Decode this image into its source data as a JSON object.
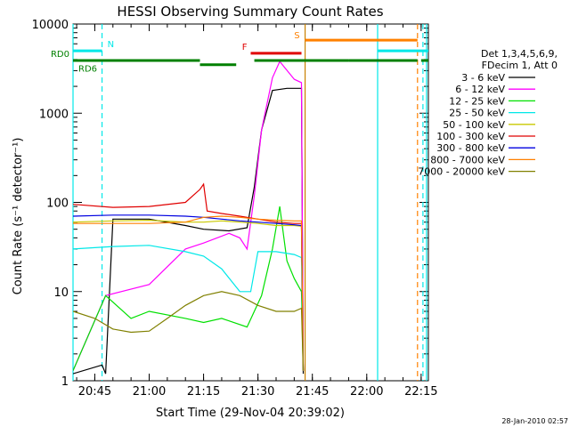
{
  "chart_data": {
    "type": "line",
    "title": "HESSI Observing Summary Count Rates",
    "xlabel": "Start Time (29-Nov-04 20:39:02)",
    "ylabel": "Count Rate (s⁻¹ detector⁻¹)",
    "yscale": "log",
    "ylim": [
      1,
      10000
    ],
    "xlim": [
      "20:39",
      "22:17"
    ],
    "x_ticks": [
      "20:45",
      "21:00",
      "21:15",
      "21:30",
      "21:45",
      "22:00",
      "22:15"
    ],
    "y_ticks": [
      "1",
      "10",
      "100",
      "1000",
      "10000"
    ],
    "legend_header": [
      "Det 1,3,4,5,6,9,",
      "FDecim 1, Att 0"
    ],
    "legend_placement": "right",
    "date_stamp": "28-Jan-2010 02:57",
    "series": [
      {
        "name": "3 - 6 keV",
        "color": "#000000",
        "points": [
          [
            "20:39",
            1.2
          ],
          [
            "20:47",
            1.5
          ],
          [
            "20:48",
            1.2
          ],
          [
            "20:50",
            65
          ],
          [
            "21:00",
            65
          ],
          [
            "21:10",
            55
          ],
          [
            "21:15",
            50
          ],
          [
            "21:22",
            48
          ],
          [
            "21:27",
            52
          ],
          [
            "21:29",
            150
          ],
          [
            "21:31",
            650
          ],
          [
            "21:34",
            1800
          ],
          [
            "21:38",
            1900
          ],
          [
            "21:42",
            1900
          ],
          [
            "21:42.5",
            1.2
          ]
        ]
      },
      {
        "name": "6 - 12 keV",
        "color": "#ff00ff",
        "points": [
          [
            "20:39",
            1.3
          ],
          [
            "20:48",
            9
          ],
          [
            "21:00",
            12
          ],
          [
            "21:10",
            30
          ],
          [
            "21:15",
            35
          ],
          [
            "21:22",
            45
          ],
          [
            "21:25",
            40
          ],
          [
            "21:27",
            30
          ],
          [
            "21:29",
            120
          ],
          [
            "21:31",
            650
          ],
          [
            "21:34",
            2500
          ],
          [
            "21:36",
            3800
          ],
          [
            "21:40",
            2400
          ],
          [
            "21:42",
            2200
          ],
          [
            "21:42.5",
            1.3
          ]
        ]
      },
      {
        "name": "12 - 25 keV",
        "color": "#00e000",
        "points": [
          [
            "20:39",
            1.3
          ],
          [
            "20:48",
            9
          ],
          [
            "20:55",
            5
          ],
          [
            "21:00",
            6
          ],
          [
            "21:10",
            5
          ],
          [
            "21:15",
            4.5
          ],
          [
            "21:20",
            5
          ],
          [
            "21:27",
            4
          ],
          [
            "21:31",
            9
          ],
          [
            "21:34",
            30
          ],
          [
            "21:36",
            90
          ],
          [
            "21:38",
            22
          ],
          [
            "21:40",
            14
          ],
          [
            "21:42",
            10
          ],
          [
            "21:42.5",
            1.3
          ]
        ]
      },
      {
        "name": "25 - 50 keV",
        "color": "#00e8e8",
        "points": [
          [
            "20:39",
            30
          ],
          [
            "20:50",
            32
          ],
          [
            "21:00",
            33
          ],
          [
            "21:10",
            28
          ],
          [
            "21:15",
            25
          ],
          [
            "21:20",
            18
          ],
          [
            "21:25",
            10
          ],
          [
            "21:28",
            10
          ],
          [
            "21:30",
            28
          ],
          [
            "21:35",
            28
          ],
          [
            "21:40",
            26
          ],
          [
            "21:42",
            24
          ],
          [
            "21:42.5",
            1.3
          ]
        ]
      },
      {
        "name": "50 - 100 keV",
        "color": "#c8c800",
        "points": [
          [
            "20:39",
            60
          ],
          [
            "20:50",
            62
          ],
          [
            "21:00",
            63
          ],
          [
            "21:10",
            60
          ],
          [
            "21:15",
            60
          ],
          [
            "21:20",
            62
          ],
          [
            "21:25",
            60
          ],
          [
            "21:30",
            58
          ],
          [
            "21:35",
            55
          ],
          [
            "21:40",
            55
          ],
          [
            "21:42",
            54
          ],
          [
            "21:42.5",
            1.3
          ]
        ]
      },
      {
        "name": "100 - 300 keV",
        "color": "#e00000",
        "points": [
          [
            "20:39",
            95
          ],
          [
            "20:50",
            88
          ],
          [
            "21:00",
            90
          ],
          [
            "21:10",
            100
          ],
          [
            "21:14",
            140
          ],
          [
            "21:15",
            160
          ],
          [
            "21:16",
            80
          ],
          [
            "21:20",
            75
          ],
          [
            "21:25",
            70
          ],
          [
            "21:30",
            65
          ],
          [
            "21:35",
            60
          ],
          [
            "21:40",
            58
          ],
          [
            "21:42",
            58
          ],
          [
            "21:42.5",
            1.3
          ]
        ]
      },
      {
        "name": "300 - 800 keV",
        "color": "#0000e0",
        "points": [
          [
            "20:39",
            70
          ],
          [
            "20:50",
            72
          ],
          [
            "21:00",
            72
          ],
          [
            "21:10",
            70
          ],
          [
            "21:15",
            68
          ],
          [
            "21:20",
            65
          ],
          [
            "21:25",
            62
          ],
          [
            "21:30",
            60
          ],
          [
            "21:35",
            58
          ],
          [
            "21:40",
            56
          ],
          [
            "21:42",
            55
          ],
          [
            "21:42.5",
            1.3
          ]
        ]
      },
      {
        "name": "800 - 7000 keV",
        "color": "#ff8000",
        "points": [
          [
            "20:39",
            58
          ],
          [
            "20:50",
            58
          ],
          [
            "21:00",
            58
          ],
          [
            "21:10",
            60
          ],
          [
            "21:15",
            68
          ],
          [
            "21:20",
            70
          ],
          [
            "21:25",
            68
          ],
          [
            "21:30",
            65
          ],
          [
            "21:35",
            63
          ],
          [
            "21:40",
            62
          ],
          [
            "21:42",
            62
          ],
          [
            "21:42.5",
            1.3
          ]
        ]
      },
      {
        "name": "7000 - 20000 keV",
        "color": "#808000",
        "points": [
          [
            "20:39",
            6
          ],
          [
            "20:45",
            5
          ],
          [
            "20:50",
            3.8
          ],
          [
            "20:55",
            3.5
          ],
          [
            "21:00",
            3.6
          ],
          [
            "21:05",
            5
          ],
          [
            "21:10",
            7
          ],
          [
            "21:15",
            9
          ],
          [
            "21:20",
            10
          ],
          [
            "21:25",
            9
          ],
          [
            "21:30",
            7
          ],
          [
            "21:35",
            6
          ],
          [
            "21:40",
            6
          ],
          [
            "21:42",
            6.5
          ],
          [
            "21:42.5",
            1.3
          ]
        ]
      }
    ],
    "flag_bars": [
      {
        "label": "N",
        "color": "#00e8e8",
        "y": 5000,
        "segments": [
          [
            "20:39",
            "20:47"
          ],
          [
            "22:03",
            "22:17"
          ]
        ]
      },
      {
        "label": "S",
        "color": "#ff8000",
        "y": 6600,
        "segments": [
          [
            "21:43",
            "22:14"
          ]
        ]
      },
      {
        "label": "F",
        "color": "#e00000",
        "y": 4700,
        "segments": [
          [
            "21:28",
            "21:42"
          ]
        ]
      },
      {
        "label": "RD0",
        "color": "#008000",
        "y": 3900,
        "segments": [
          [
            "20:39",
            "21:14"
          ],
          [
            "21:29",
            "21:55"
          ],
          [
            "21:55",
            "22:14"
          ],
          [
            "22:15",
            "22:17"
          ]
        ]
      },
      {
        "label": "RD6",
        "color": "#008000",
        "y": 3500,
        "segments": [
          [
            "21:14",
            "21:24"
          ]
        ]
      }
    ],
    "flag_extras": [
      {
        "color": "#00e8e8",
        "x": "20:39",
        "style": "solid"
      },
      {
        "color": "#00e8e8",
        "x": "20:47",
        "style": "dashed"
      },
      {
        "color": "#c88000",
        "x": "21:43",
        "style": "solid"
      },
      {
        "color": "#00e8e8",
        "x": "22:03",
        "style": "solid"
      },
      {
        "color": "#ff8000",
        "x": "22:14",
        "style": "dashed"
      },
      {
        "color": "#00e8e8",
        "x": "22:15.5",
        "style": "dashed"
      },
      {
        "color": "#00e8e8",
        "x": "22:16.5",
        "style": "solid"
      }
    ]
  }
}
